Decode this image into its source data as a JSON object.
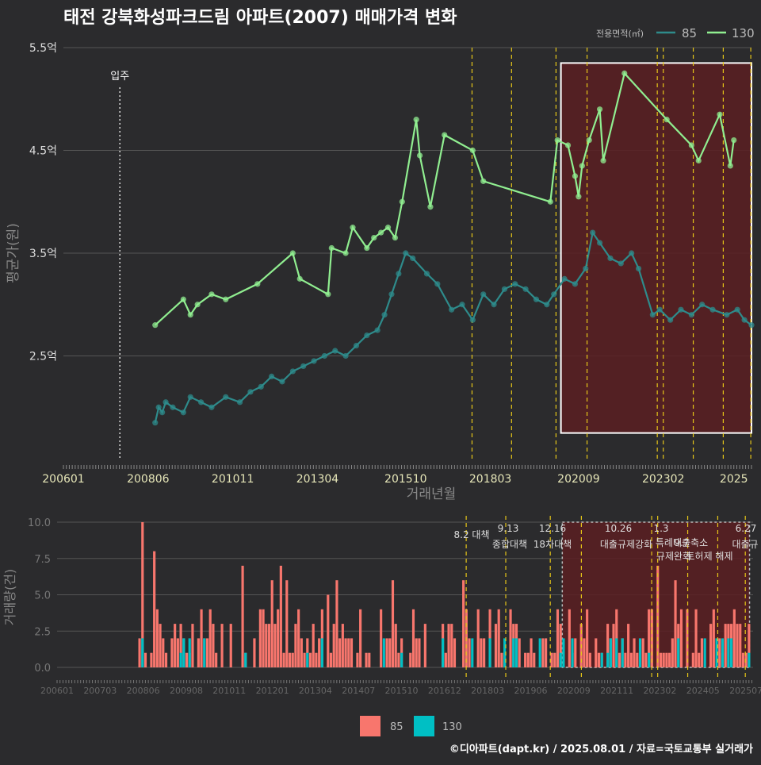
{
  "title": "태전 강북화성파크드림 아파트(2007) 매매가격 변화",
  "credit": "©디아파트(dapt.kr) / 2025.08.01 / 자료=국토교통부 실거래가",
  "colors": {
    "background": "#2b2b2d",
    "grid": "#555555",
    "series85_line": "#2e8b8b",
    "series130_line": "#90ee90",
    "bar85": "#f8766d",
    "bar130": "#00bfc4",
    "policy_line": "#e6c619",
    "highlight_fill": "#5a1f22",
    "highlight_border": "#ffffff"
  },
  "chart_data": [
    {
      "type": "line",
      "title": "태전 강북화성파크드림 아파트(2007) 매매가격 변화",
      "xlabel": "거래년월",
      "ylabel": "평균가(원)",
      "legend_title": "전용면적(㎡)",
      "legend_position": "top-right",
      "x_ticks": [
        "200601",
        "200806",
        "201011",
        "201304",
        "201510",
        "201803",
        "202009",
        "202302",
        "2025"
      ],
      "y_ticks": [
        "2.5억",
        "3.5억",
        "4.5억",
        "5.5억"
      ],
      "ylim": [
        1.5,
        5.5
      ],
      "grid": true,
      "annotations": {
        "move_in": "입주",
        "move_in_date": "2007.8"
      },
      "policy_dates": [
        2017.58,
        2018.7,
        2019.96,
        2020.84,
        2022.83,
        2023.0,
        2023.85,
        2024.7,
        2025.48
      ],
      "highlight_range": {
        "x": [
          2020.1,
          2025.5
        ],
        "y": [
          1.75,
          5.35
        ]
      },
      "series": [
        {
          "name": "85",
          "points": [
            [
              2008.6,
              1.85
            ],
            [
              2008.7,
              2.0
            ],
            [
              2008.8,
              1.95
            ],
            [
              2008.9,
              2.05
            ],
            [
              2009.1,
              2.0
            ],
            [
              2009.4,
              1.95
            ],
            [
              2009.6,
              2.1
            ],
            [
              2009.9,
              2.05
            ],
            [
              2010.2,
              2.0
            ],
            [
              2010.6,
              2.1
            ],
            [
              2011.0,
              2.05
            ],
            [
              2011.3,
              2.15
            ],
            [
              2011.6,
              2.2
            ],
            [
              2011.9,
              2.3
            ],
            [
              2012.2,
              2.25
            ],
            [
              2012.5,
              2.35
            ],
            [
              2012.8,
              2.4
            ],
            [
              2013.1,
              2.45
            ],
            [
              2013.4,
              2.5
            ],
            [
              2013.7,
              2.55
            ],
            [
              2014.0,
              2.5
            ],
            [
              2014.3,
              2.6
            ],
            [
              2014.6,
              2.7
            ],
            [
              2014.9,
              2.75
            ],
            [
              2015.1,
              2.9
            ],
            [
              2015.3,
              3.1
            ],
            [
              2015.5,
              3.3
            ],
            [
              2015.7,
              3.5
            ],
            [
              2015.9,
              3.45
            ],
            [
              2016.3,
              3.3
            ],
            [
              2016.6,
              3.2
            ],
            [
              2017.0,
              2.95
            ],
            [
              2017.3,
              3.0
            ],
            [
              2017.6,
              2.85
            ],
            [
              2017.9,
              3.1
            ],
            [
              2018.2,
              3.0
            ],
            [
              2018.5,
              3.15
            ],
            [
              2018.8,
              3.2
            ],
            [
              2019.1,
              3.15
            ],
            [
              2019.4,
              3.05
            ],
            [
              2019.7,
              3.0
            ],
            [
              2019.9,
              3.1
            ],
            [
              2020.2,
              3.25
            ],
            [
              2020.5,
              3.2
            ],
            [
              2020.8,
              3.35
            ],
            [
              2021.0,
              3.7
            ],
            [
              2021.2,
              3.6
            ],
            [
              2021.5,
              3.45
            ],
            [
              2021.8,
              3.4
            ],
            [
              2022.1,
              3.5
            ],
            [
              2022.3,
              3.35
            ],
            [
              2022.7,
              2.9
            ],
            [
              2022.9,
              2.95
            ],
            [
              2023.2,
              2.85
            ],
            [
              2023.5,
              2.95
            ],
            [
              2023.8,
              2.9
            ],
            [
              2024.1,
              3.0
            ],
            [
              2024.4,
              2.95
            ],
            [
              2024.8,
              2.9
            ],
            [
              2025.1,
              2.95
            ],
            [
              2025.3,
              2.85
            ],
            [
              2025.5,
              2.8
            ]
          ]
        },
        {
          "name": "130",
          "points": [
            [
              2008.6,
              2.8
            ],
            [
              2009.4,
              3.05
            ],
            [
              2009.6,
              2.9
            ],
            [
              2009.8,
              3.0
            ],
            [
              2010.2,
              3.1
            ],
            [
              2010.6,
              3.05
            ],
            [
              2011.5,
              3.2
            ],
            [
              2012.5,
              3.5
            ],
            [
              2012.7,
              3.25
            ],
            [
              2013.5,
              3.1
            ],
            [
              2013.6,
              3.55
            ],
            [
              2014.0,
              3.5
            ],
            [
              2014.2,
              3.75
            ],
            [
              2014.6,
              3.55
            ],
            [
              2014.8,
              3.65
            ],
            [
              2015.0,
              3.7
            ],
            [
              2015.2,
              3.75
            ],
            [
              2015.4,
              3.65
            ],
            [
              2015.6,
              4.0
            ],
            [
              2016.0,
              4.8
            ],
            [
              2016.1,
              4.45
            ],
            [
              2016.4,
              3.95
            ],
            [
              2016.8,
              4.65
            ],
            [
              2017.6,
              4.5
            ],
            [
              2017.9,
              4.2
            ],
            [
              2019.8,
              4.0
            ],
            [
              2020.0,
              4.6
            ],
            [
              2020.3,
              4.55
            ],
            [
              2020.5,
              4.25
            ],
            [
              2020.6,
              4.05
            ],
            [
              2020.7,
              4.35
            ],
            [
              2020.9,
              4.6
            ],
            [
              2021.2,
              4.9
            ],
            [
              2021.3,
              4.4
            ],
            [
              2021.9,
              5.25
            ],
            [
              2023.1,
              4.8
            ],
            [
              2023.8,
              4.55
            ],
            [
              2024.0,
              4.4
            ],
            [
              2024.6,
              4.85
            ],
            [
              2024.9,
              4.35
            ],
            [
              2025.0,
              4.6
            ]
          ]
        }
      ]
    },
    {
      "type": "bar",
      "ylabel": "거래량(건)",
      "y_ticks": [
        "0.0",
        "2.5",
        "5.0",
        "7.5",
        "10.0"
      ],
      "ylim": [
        0,
        10
      ],
      "x_ticks": [
        "200601",
        "200703",
        "200806",
        "200908",
        "201011",
        "201201",
        "201304",
        "201407",
        "201510",
        "201612",
        "201803",
        "201906",
        "202009",
        "202111",
        "202302",
        "202405",
        "202507"
      ],
      "legend": [
        "85",
        "130"
      ],
      "legend_position": "bottom",
      "grid": true,
      "policy_labels": [
        {
          "date": "8.2 대책",
          "name": ""
        },
        {
          "date": "9.13",
          "name": "종합대책"
        },
        {
          "date": "12.16",
          "name": "18차대책"
        },
        {
          "date": "10.26",
          "name": "대출규제강화"
        },
        {
          "date": "1.3",
          "name": "규제완화"
        },
        {
          "date": "9.7",
          "name": "특례대출축소"
        },
        {
          "date": "",
          "name": "토허제 해제"
        },
        {
          "date": "6.27",
          "name": "대출규"
        }
      ],
      "series": [
        {
          "name": "85",
          "note": "monthly transaction counts (red bars)"
        },
        {
          "name": "130",
          "note": "monthly transaction counts (teal bars)"
        }
      ]
    }
  ]
}
